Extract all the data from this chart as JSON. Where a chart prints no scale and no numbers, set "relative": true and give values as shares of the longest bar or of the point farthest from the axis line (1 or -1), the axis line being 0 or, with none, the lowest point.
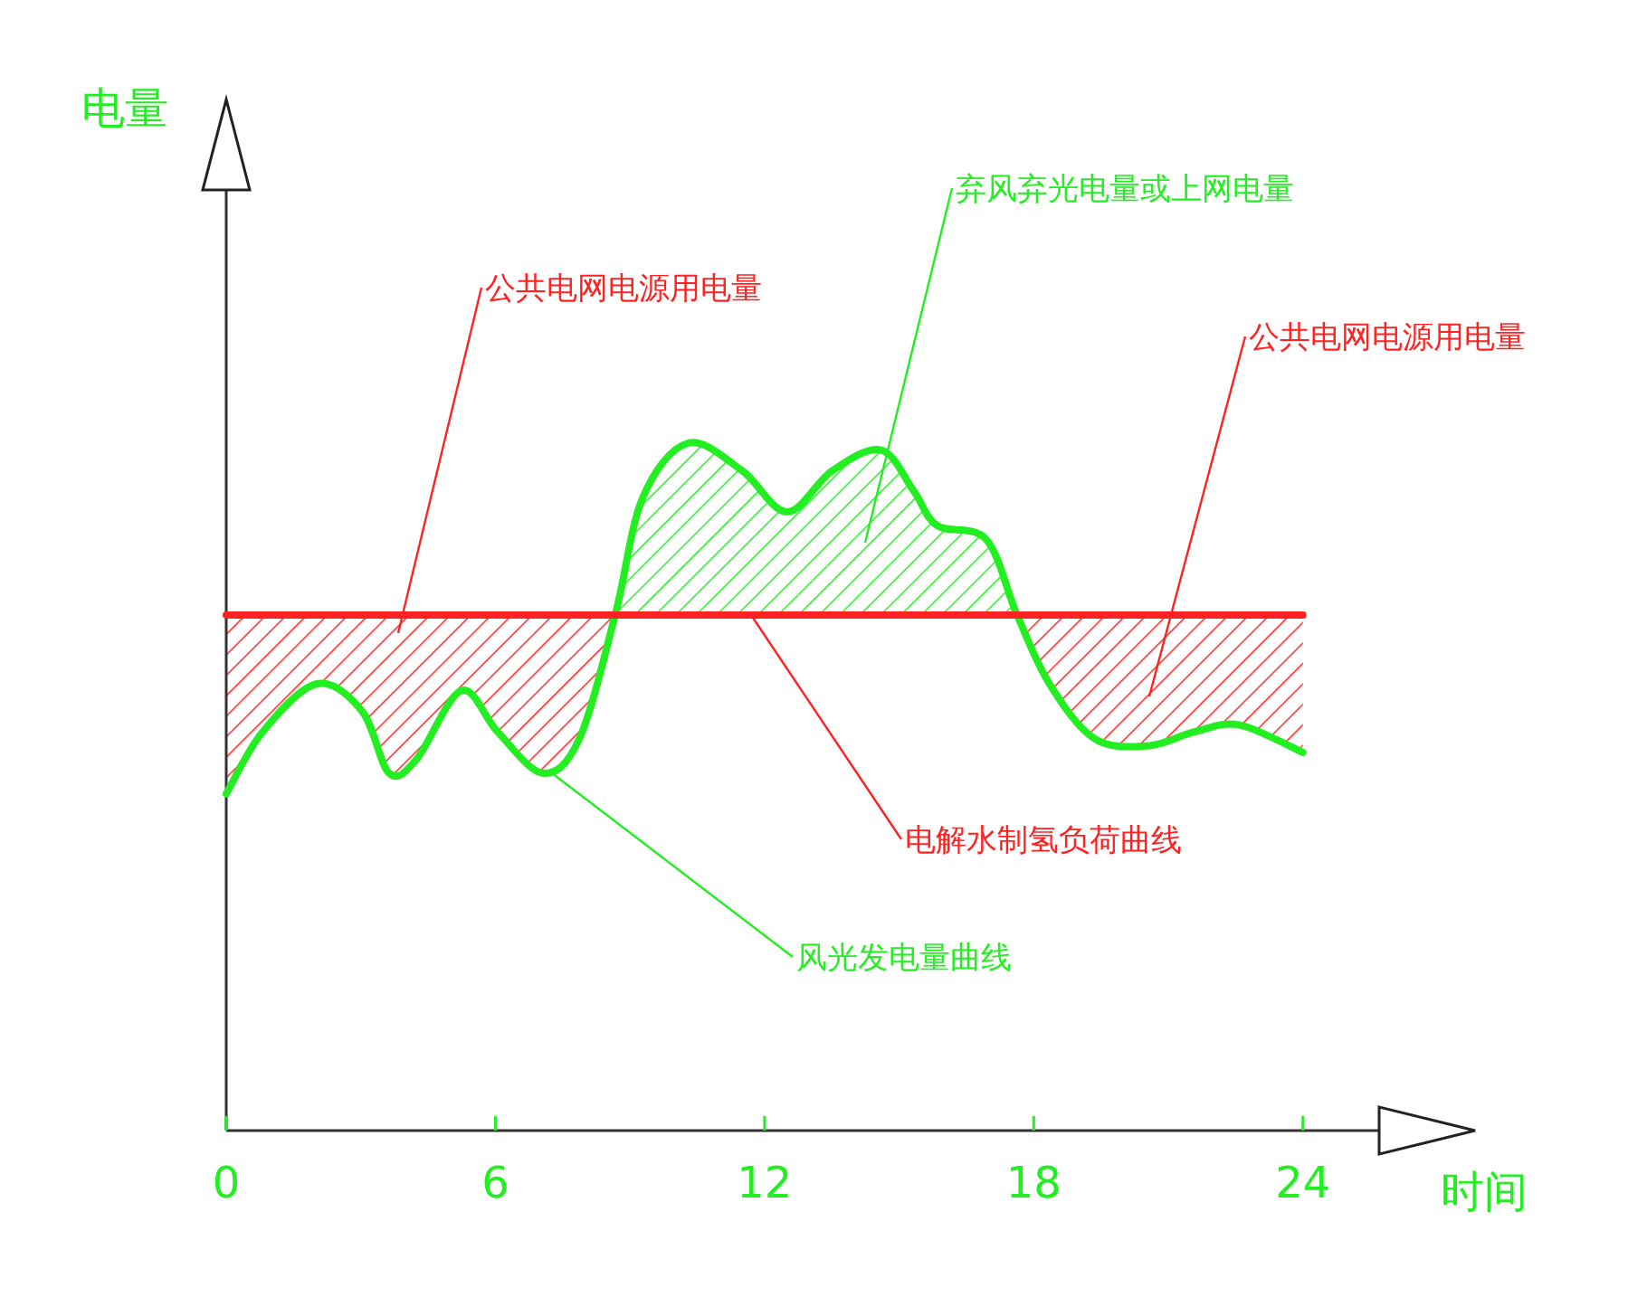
{
  "chart_data": {
    "type": "line",
    "relative": true,
    "xlabel": "时间",
    "xlim": [
      0,
      25.7
    ],
    "xticks": [
      0,
      6,
      12,
      18,
      24
    ],
    "grid": false,
    "legend": false,
    "marker": "none",
    "line_style": "solid",
    "series": [
      {
        "color": "#22ee22",
        "x": [
          0,
          0.81,
          2.02,
          3.03,
          3.63,
          4.24,
          5.24,
          6.05,
          7.06,
          7.87,
          8.67,
          9.28,
          10.29,
          11.5,
          12.5,
          13.51,
          14.6,
          15.33,
          15.85,
          16.94,
          17.63,
          18.35,
          19.36,
          20.57,
          21.58,
          22.59,
          24
        ],
        "values": [
          0.49,
          0.58,
          0.65,
          0.61,
          0.52,
          0.54,
          0.64,
          0.58,
          0.52,
          0.57,
          0.75,
          0.92,
          1.0,
          0.96,
          0.9,
          0.96,
          0.99,
          0.93,
          0.88,
          0.86,
          0.75,
          0.65,
          0.57,
          0.56,
          0.58,
          0.59,
          0.55
        ],
        "lower": [
          null,
          null,
          null,
          null,
          null,
          null,
          null,
          null,
          null,
          null,
          0.75,
          0.75,
          0.75,
          0.75,
          0.75,
          0.75,
          0.75,
          0.75,
          0.75,
          0.75,
          0.75,
          null,
          null,
          null,
          null,
          null,
          null
        ],
        "upper": [
          null,
          null,
          null,
          null,
          null,
          null,
          null,
          null,
          null,
          null,
          0.75,
          0.92,
          1.0,
          0.96,
          0.9,
          0.96,
          0.99,
          0.93,
          0.88,
          0.86,
          0.75,
          null,
          null,
          null,
          null,
          null,
          null
        ]
      },
      {
        "color": "#ff2222",
        "x": [
          0,
          0.81,
          2.02,
          3.03,
          3.63,
          4.24,
          5.24,
          6.05,
          7.06,
          7.87,
          8.67,
          9.28,
          10.29,
          11.5,
          12.5,
          13.51,
          14.6,
          15.33,
          15.85,
          16.94,
          17.63,
          18.35,
          19.36,
          20.57,
          21.58,
          22.59,
          24
        ],
        "values": [
          0.75,
          0.75,
          0.75,
          0.75,
          0.75,
          0.75,
          0.75,
          0.75,
          0.75,
          0.75,
          0.75,
          0.75,
          0.75,
          0.75,
          0.75,
          0.75,
          0.75,
          0.75,
          0.75,
          0.75,
          0.75,
          0.75,
          0.75,
          0.75,
          0.75,
          0.75,
          0.75
        ],
        "lower": [
          0.49,
          0.58,
          0.65,
          0.61,
          0.52,
          0.54,
          0.64,
          0.58,
          0.52,
          0.57,
          0.75,
          null,
          null,
          null,
          null,
          null,
          null,
          null,
          null,
          null,
          0.75,
          0.65,
          0.57,
          0.56,
          0.58,
          0.59,
          0.55
        ],
        "upper": [
          0.75,
          0.75,
          0.75,
          0.75,
          0.75,
          0.75,
          0.75,
          0.75,
          0.75,
          0.75,
          0.75,
          null,
          null,
          null,
          null,
          null,
          null,
          null,
          null,
          null,
          0.75,
          0.75,
          0.75,
          0.75,
          0.75,
          0.75,
          0.75
        ]
      }
    ],
    "annotations": [
      "电量",
      "公共电网电源用电量",
      "弃风弃光电量或上网电量",
      "公共电网电源用电量",
      {
        "text": "电解水制氢负荷曲线",
        "x": 11.7,
        "y": 0.75
      },
      {
        "text": "风光发电量曲线",
        "x": 7.26,
        "y": 0.52
      }
    ]
  }
}
